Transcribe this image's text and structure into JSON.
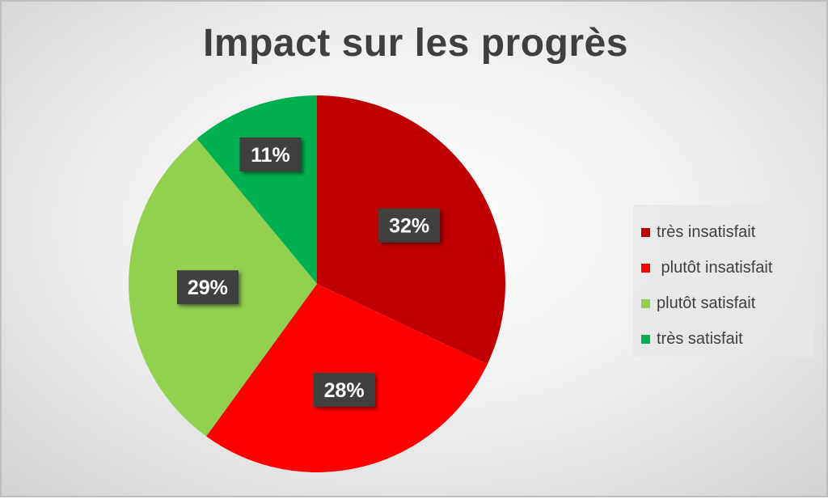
{
  "chart_data": {
    "type": "pie",
    "title": "Impact sur les progrès",
    "categories": [
      "très insatisfait",
      " plutôt insatisfait",
      "plutôt satisfait",
      "très satisfait"
    ],
    "values": [
      32,
      28,
      29,
      11
    ],
    "value_labels": [
      "32%",
      "28%",
      "29%",
      "11%"
    ],
    "colors": [
      "#c00000",
      "#ff0000",
      "#92d050",
      "#00b050"
    ],
    "start_angle_deg": 0,
    "direction": "clockwise",
    "legend_placement": "right"
  }
}
